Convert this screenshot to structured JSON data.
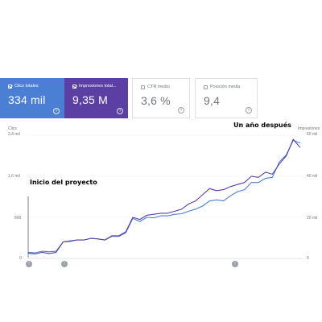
{
  "metric_cards": [
    {
      "label": "Clics totales",
      "value": "334 mil",
      "checked": true,
      "color": "#4a7fd4"
    },
    {
      "label": "Impresiones total...",
      "value": "9,35 M",
      "checked": true,
      "color": "#5b3fa3"
    },
    {
      "label": "CTR medio",
      "value": "3,6 %",
      "checked": false
    },
    {
      "label": "Posición media",
      "value": "9,4",
      "checked": false
    }
  ],
  "help_glyph": "?",
  "annotations": {
    "after": "Un año después",
    "start": "Inicio del proyecto"
  },
  "event_marker_glyph": "!",
  "chart_data": {
    "type": "line",
    "y_left_label": "Clics",
    "y_left_ticks": [
      "2,4 mil",
      "1,6 mil",
      "800",
      "0"
    ],
    "y_left_range": [
      0,
      2400
    ],
    "y_right_label": "Impresiones",
    "y_right_ticks": [
      "60 mil",
      "40 mil",
      "20 mil",
      "0"
    ],
    "y_right_range": [
      0,
      60000
    ],
    "grid": true,
    "legend": "none",
    "series": [
      {
        "name": "Clics",
        "axis": "left",
        "color": "#4a7fd4",
        "values": [
          120,
          110,
          140,
          130,
          140,
          320,
          330,
          360,
          360,
          390,
          380,
          360,
          430,
          430,
          500,
          780,
          720,
          800,
          790,
          830,
          830,
          860,
          870,
          920,
          960,
          1020,
          1120,
          1140,
          1120,
          1220,
          1300,
          1340,
          1480,
          1480,
          1560,
          1580,
          1880,
          2020,
          2300,
          2250
        ]
      },
      {
        "name": "Impresiones",
        "axis": "right",
        "color": "#5b3fa3",
        "values": [
          2500,
          2200,
          3000,
          2400,
          3000,
          8000,
          8500,
          9000,
          9000,
          9800,
          9500,
          9000,
          11000,
          11000,
          13000,
          20000,
          19000,
          21000,
          21500,
          22000,
          22000,
          23000,
          24000,
          26500,
          28000,
          31000,
          34000,
          33000,
          33500,
          35000,
          36000,
          37000,
          40000,
          39500,
          42000,
          41000,
          46000,
          50000,
          58000,
          54000
        ]
      }
    ]
  }
}
